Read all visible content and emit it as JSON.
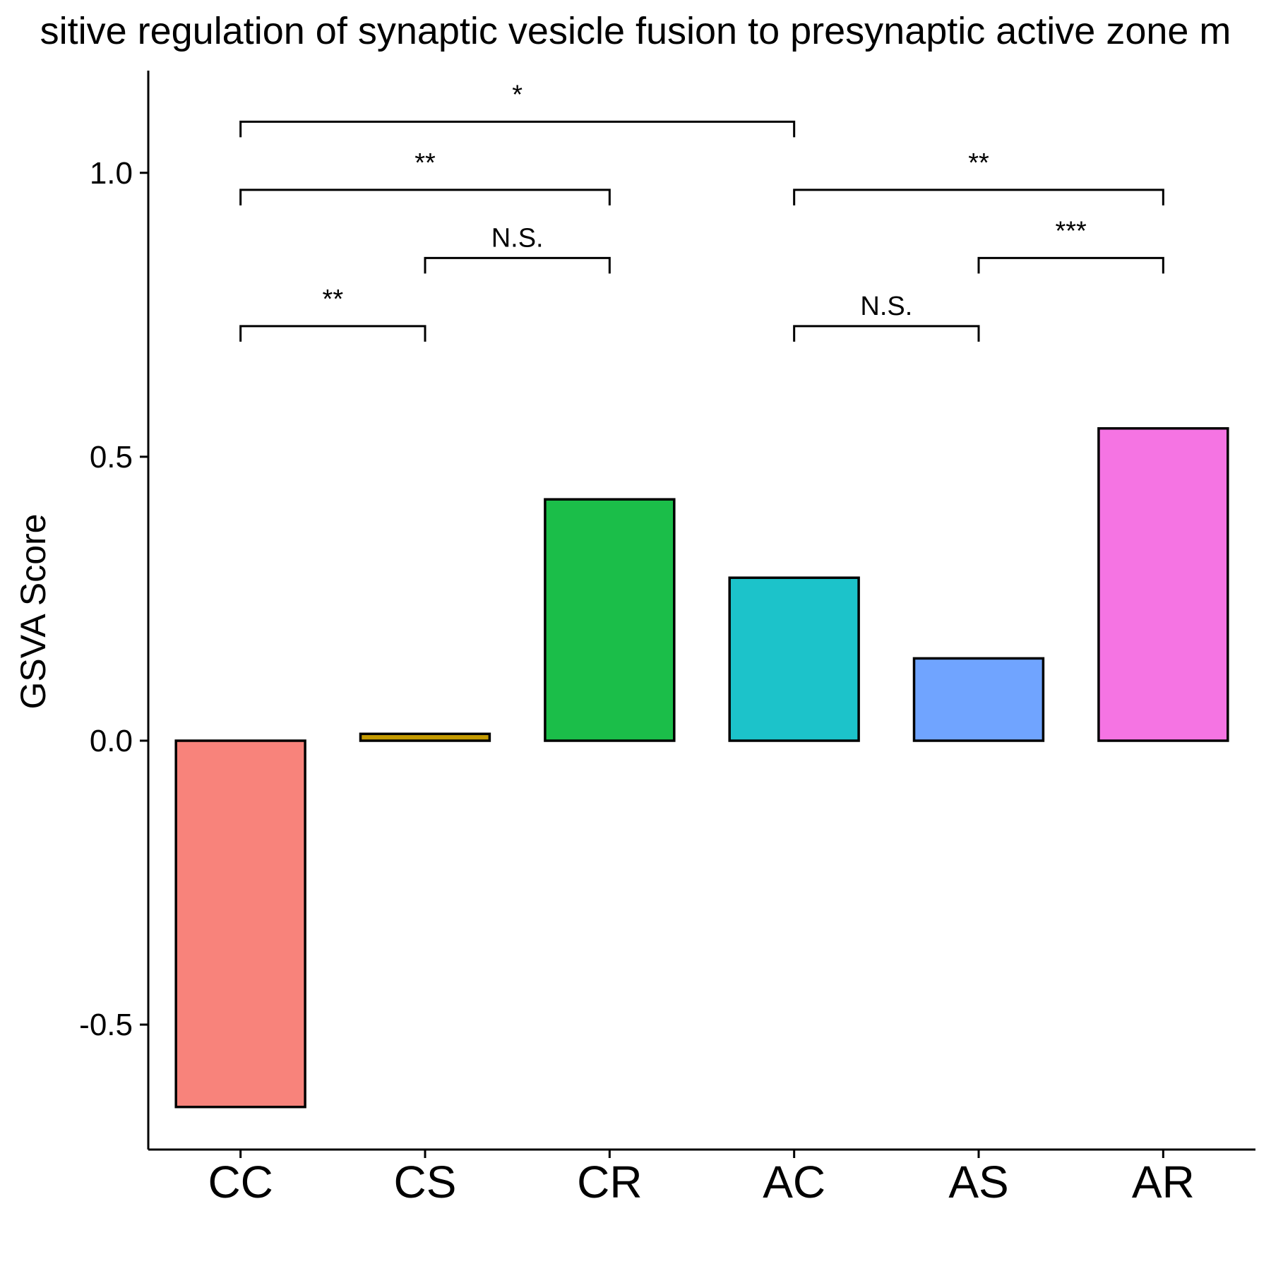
{
  "chart_data": {
    "type": "bar",
    "title": "sitive regulation of synaptic vesicle fusion to presynaptic active zone m",
    "xlabel": "",
    "ylabel": "GSVA Score",
    "ylim": [
      -0.72,
      1.18
    ],
    "yticks": [
      -0.5,
      0.0,
      0.5,
      1.0
    ],
    "ytick_labels": [
      "-0.5",
      "0.0",
      "0.5",
      "1.0"
    ],
    "categories": [
      "CC",
      "CS",
      "CR",
      "AC",
      "AS",
      "AR"
    ],
    "values": [
      -0.645,
      0.012,
      0.425,
      0.287,
      0.145,
      0.55
    ],
    "colors": [
      "#F8837B",
      "#C49A00",
      "#1BBE49",
      "#1CC3CA",
      "#70A4FF",
      "#F574E3"
    ],
    "grid": false,
    "legend": "none",
    "comparisons": [
      {
        "from": "CC",
        "to": "CS",
        "label": "**",
        "y": 0.73
      },
      {
        "from": "CS",
        "to": "CR",
        "label": "N.S.",
        "y": 0.85
      },
      {
        "from": "CC",
        "to": "CR",
        "label": "**",
        "y": 0.97
      },
      {
        "from": "CC",
        "to": "AC",
        "label": "*",
        "y": 1.09
      },
      {
        "from": "AC",
        "to": "AS",
        "label": "N.S.",
        "y": 0.73
      },
      {
        "from": "AS",
        "to": "AR",
        "label": "***",
        "y": 0.85
      },
      {
        "from": "AC",
        "to": "AR",
        "label": "**",
        "y": 0.97
      }
    ]
  }
}
